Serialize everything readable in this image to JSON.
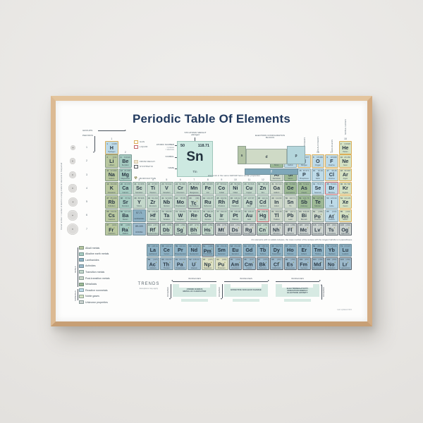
{
  "title": "Periodic Table Of Elements",
  "palette": {
    "wall": "#e7e5e2",
    "frame_wood": "#d9b78f",
    "title_text": "#223a5e"
  },
  "axis_labels": {
    "groups": "GROUPS",
    "periods": "PERIODS"
  },
  "group_numbers": [
    "1",
    "2",
    "3",
    "4",
    "5",
    "6",
    "7",
    "8",
    "9",
    "10",
    "11",
    "12",
    "13",
    "14",
    "15",
    "16",
    "17",
    "18"
  ],
  "period_numbers": [
    "1",
    "2",
    "3",
    "4",
    "5",
    "6",
    "7"
  ],
  "column_headers": [
    {
      "g": 15,
      "label": "PNICTOGENS"
    },
    {
      "g": 16,
      "label": "CHALCOGENS"
    },
    {
      "g": 17,
      "label": "HALOGENS"
    },
    {
      "g": 18,
      "label": "NOBLE GASES"
    }
  ],
  "key": {
    "std_weight_label": "STD ATOMIC WEIGHT",
    "std_weight_sub": "abridged",
    "atomic_number_label": "ATOMIC NUMBER",
    "protons_label": "= protons",
    "electrons_label": "= electrons",
    "symbol_label": "SYMBOL",
    "name_label": "NAME",
    "number": "50",
    "weight": "118.71",
    "symbol": "Sn",
    "name": "Tin"
  },
  "state_legend": [
    {
      "type": "gas",
      "label": "GAS",
      "color": "#dcae58"
    },
    {
      "type": "liquid",
      "label": "LIQUID",
      "color": "#c4646a"
    },
    {
      "type": "decay",
      "label": "FROM DECAY",
      "color": "#efe5cf"
    },
    {
      "type": "synthetic",
      "label": "SYNTHETIC",
      "color": "#55595e"
    },
    {
      "type": "radioactive",
      "label": "RADIOACTIVE",
      "icon": "radioactive-trefoil-icon",
      "color": "#6b6b2a"
    }
  ],
  "econfig": {
    "title": "ELECTRON CONFIGURATION",
    "subtitle": "BLOCKS",
    "blocks": [
      "s",
      "d",
      "p",
      "f"
    ],
    "block_colors": {
      "s": "#b3c4a6",
      "d": "#cfdac6",
      "p": "#b4d6dc",
      "f": "#7fa7b9"
    }
  },
  "notes": {
    "group_note": "Elements in the same GROUP have similar properties",
    "isotope_note": "For elements with no stable isotopes, the mass number of the isotope with the longest half-life is in parentheses.",
    "period_note": "Period number = number of electron energy shells for elements in that period",
    "credit": "Last updated 2021"
  },
  "categories": [
    {
      "id": "ak",
      "label": "Alkali metals",
      "color": "#b8c79f"
    },
    {
      "id": "ae",
      "label": "Alkaline earth metals",
      "color": "#a6cbc1"
    },
    {
      "id": "la",
      "label": "Lanthanides",
      "color": "#8cb0c3"
    },
    {
      "id": "ac",
      "label": "Actinides",
      "color": "#9cb9cb"
    },
    {
      "id": "tm",
      "label": "Transition metals",
      "color": "#c3d7ca"
    },
    {
      "id": "pt",
      "label": "Post-transition metals",
      "color": "#ccd7c9"
    },
    {
      "id": "md",
      "label": "Metalloids",
      "color": "#9db995"
    },
    {
      "id": "nm",
      "label": "Reactive nonmetals",
      "color": "#bddae8"
    },
    {
      "id": "ng",
      "label": "Noble gases",
      "color": "#d5e2c4"
    },
    {
      "id": "uk",
      "label": "Unknown properties",
      "color": "#cbd2cf"
    }
  ],
  "category_groups": {
    "metals": "METALS",
    "nonmetals": "NONMETALS"
  },
  "placeholders": [
    {
      "range": "57-71",
      "label": "Lanthanides",
      "p": 6,
      "g": 3,
      "cat": "la"
    },
    {
      "range": "89-103",
      "label": "Actinides",
      "p": 7,
      "g": 3,
      "cat": "ac"
    }
  ],
  "trends": {
    "title": "TRENDS",
    "subtitle": "Exceptions may apply",
    "increases": "INCREASES",
    "items": [
      {
        "lines": [
          "ATOMIC RADIUS",
          "METALLIC CHARACTER"
        ],
        "top": "left",
        "side": "left-down"
      },
      {
        "lines": [
          "EFFECTIVE NUCLEAR CHARGE"
        ],
        "top": "right",
        "side": "left-down"
      },
      {
        "lines": [
          "ELECTRONEGATIVITY",
          "IONIZATION ENERGY",
          "ELECTRON AFFINITY"
        ],
        "top": "right",
        "side": "right-up"
      }
    ]
  },
  "elements": [
    [
      1,
      "H",
      "Hydrogen",
      "1.008",
      "nm",
      1,
      1,
      "g"
    ],
    [
      2,
      "He",
      "Helium",
      "4.0026",
      "ng",
      1,
      18,
      "g"
    ],
    [
      3,
      "Li",
      "Lithium",
      "6.94",
      "ak",
      2,
      1,
      ""
    ],
    [
      4,
      "Be",
      "Beryllium",
      "9.0122",
      "ae",
      2,
      2,
      ""
    ],
    [
      5,
      "B",
      "Boron",
      "10.81",
      "md",
      2,
      13,
      ""
    ],
    [
      6,
      "C",
      "Carbon",
      "12.011",
      "nm",
      2,
      14,
      ""
    ],
    [
      7,
      "N",
      "Nitrogen",
      "14.007",
      "nm",
      2,
      15,
      "g"
    ],
    [
      8,
      "O",
      "Oxygen",
      "15.999",
      "nm",
      2,
      16,
      "g"
    ],
    [
      9,
      "F",
      "Fluorine",
      "18.998",
      "nm",
      2,
      17,
      "g"
    ],
    [
      10,
      "Ne",
      "Neon",
      "20.180",
      "ng",
      2,
      18,
      "g"
    ],
    [
      11,
      "Na",
      "Sodium",
      "22.990",
      "ak",
      3,
      1,
      ""
    ],
    [
      12,
      "Mg",
      "Magnesium",
      "24.305",
      "ae",
      3,
      2,
      ""
    ],
    [
      13,
      "Al",
      "Aluminium",
      "26.982",
      "pt",
      3,
      13,
      ""
    ],
    [
      14,
      "Si",
      "Silicon",
      "28.085",
      "md",
      3,
      14,
      ""
    ],
    [
      15,
      "P",
      "Phosphorus",
      "30.974",
      "nm",
      3,
      15,
      ""
    ],
    [
      16,
      "S",
      "Sulfur",
      "32.06",
      "nm",
      3,
      16,
      ""
    ],
    [
      17,
      "Cl",
      "Chlorine",
      "35.45",
      "nm",
      3,
      17,
      "g"
    ],
    [
      18,
      "Ar",
      "Argon",
      "39.948",
      "ng",
      3,
      18,
      "g"
    ],
    [
      19,
      "K",
      "Potassium",
      "39.098",
      "ak",
      4,
      1,
      ""
    ],
    [
      20,
      "Ca",
      "Calcium",
      "40.078",
      "ae",
      4,
      2,
      ""
    ],
    [
      21,
      "Sc",
      "Scandium",
      "44.956",
      "tm",
      4,
      3,
      ""
    ],
    [
      22,
      "Ti",
      "Titanium",
      "47.867",
      "tm",
      4,
      4,
      ""
    ],
    [
      23,
      "V",
      "Vanadium",
      "50.942",
      "tm",
      4,
      5,
      ""
    ],
    [
      24,
      "Cr",
      "Chromium",
      "51.996",
      "tm",
      4,
      6,
      ""
    ],
    [
      25,
      "Mn",
      "Manganese",
      "54.938",
      "tm",
      4,
      7,
      ""
    ],
    [
      26,
      "Fe",
      "Iron",
      "55.845",
      "tm",
      4,
      8,
      ""
    ],
    [
      27,
      "Co",
      "Cobalt",
      "58.933",
      "tm",
      4,
      9,
      ""
    ],
    [
      28,
      "Ni",
      "Nickel",
      "58.693",
      "tm",
      4,
      10,
      ""
    ],
    [
      29,
      "Cu",
      "Copper",
      "63.546",
      "tm",
      4,
      11,
      ""
    ],
    [
      30,
      "Zn",
      "Zinc",
      "65.38",
      "tm",
      4,
      12,
      ""
    ],
    [
      31,
      "Ga",
      "Gallium",
      "69.723",
      "pt",
      4,
      13,
      ""
    ],
    [
      32,
      "Ge",
      "Germanium",
      "72.630",
      "md",
      4,
      14,
      ""
    ],
    [
      33,
      "As",
      "Arsenic",
      "74.922",
      "md",
      4,
      15,
      ""
    ],
    [
      34,
      "Se",
      "Selenium",
      "78.971",
      "nm",
      4,
      16,
      ""
    ],
    [
      35,
      "Br",
      "Bromine",
      "79.904",
      "nm",
      4,
      17,
      "l"
    ],
    [
      36,
      "Kr",
      "Krypton",
      "83.798",
      "ng",
      4,
      18,
      "g"
    ],
    [
      37,
      "Rb",
      "Rubidium",
      "85.468",
      "ak",
      5,
      1,
      ""
    ],
    [
      38,
      "Sr",
      "Strontium",
      "87.62",
      "ae",
      5,
      2,
      ""
    ],
    [
      39,
      "Y",
      "Yttrium",
      "88.906",
      "tm",
      5,
      3,
      ""
    ],
    [
      40,
      "Zr",
      "Zirconium",
      "91.224",
      "tm",
      5,
      4,
      ""
    ],
    [
      41,
      "Nb",
      "Niobium",
      "92.906",
      "tm",
      5,
      5,
      ""
    ],
    [
      42,
      "Mo",
      "Molybdenum",
      "95.95",
      "tm",
      5,
      6,
      ""
    ],
    [
      43,
      "Tc",
      "Technetium",
      "(98)",
      "tm",
      5,
      7,
      "rs"
    ],
    [
      44,
      "Ru",
      "Ruthenium",
      "101.07",
      "tm",
      5,
      8,
      ""
    ],
    [
      45,
      "Rh",
      "Rhodium",
      "102.91",
      "tm",
      5,
      9,
      ""
    ],
    [
      46,
      "Pd",
      "Palladium",
      "106.42",
      "tm",
      5,
      10,
      ""
    ],
    [
      47,
      "Ag",
      "Silver",
      "107.87",
      "tm",
      5,
      11,
      ""
    ],
    [
      48,
      "Cd",
      "Cadmium",
      "112.41",
      "tm",
      5,
      12,
      ""
    ],
    [
      49,
      "In",
      "Indium",
      "114.82",
      "pt",
      5,
      13,
      ""
    ],
    [
      50,
      "Sn",
      "Tin",
      "118.71",
      "pt",
      5,
      14,
      ""
    ],
    [
      51,
      "Sb",
      "Antimony",
      "121.76",
      "md",
      5,
      15,
      ""
    ],
    [
      52,
      "Te",
      "Tellurium",
      "127.60",
      "md",
      5,
      16,
      ""
    ],
    [
      53,
      "I",
      "Iodine",
      "126.90",
      "nm",
      5,
      17,
      ""
    ],
    [
      54,
      "Xe",
      "Xenon",
      "131.29",
      "ng",
      5,
      18,
      "g"
    ],
    [
      55,
      "Cs",
      "Caesium",
      "132.91",
      "ak",
      6,
      1,
      ""
    ],
    [
      56,
      "Ba",
      "Barium",
      "137.33",
      "ae",
      6,
      2,
      ""
    ],
    [
      72,
      "Hf",
      "Hafnium",
      "178.49",
      "tm",
      6,
      4,
      ""
    ],
    [
      73,
      "Ta",
      "Tantalum",
      "180.95",
      "tm",
      6,
      5,
      ""
    ],
    [
      74,
      "W",
      "Tungsten",
      "183.84",
      "tm",
      6,
      6,
      ""
    ],
    [
      75,
      "Re",
      "Rhenium",
      "186.21",
      "tm",
      6,
      7,
      ""
    ],
    [
      76,
      "Os",
      "Osmium",
      "190.23",
      "tm",
      6,
      8,
      ""
    ],
    [
      77,
      "Ir",
      "Iridium",
      "192.22",
      "tm",
      6,
      9,
      ""
    ],
    [
      78,
      "Pt",
      "Platinum",
      "195.08",
      "tm",
      6,
      10,
      ""
    ],
    [
      79,
      "Au",
      "Gold",
      "196.97",
      "tm",
      6,
      11,
      ""
    ],
    [
      80,
      "Hg",
      "Mercury",
      "200.59",
      "tm",
      6,
      12,
      "l"
    ],
    [
      81,
      "Tl",
      "Thallium",
      "204.38",
      "pt",
      6,
      13,
      ""
    ],
    [
      82,
      "Pb",
      "Lead",
      "207.2",
      "pt",
      6,
      14,
      ""
    ],
    [
      83,
      "Bi",
      "Bismuth",
      "208.98",
      "pt",
      6,
      15,
      ""
    ],
    [
      84,
      "Po",
      "Polonium",
      "(209)",
      "pt",
      6,
      16,
      "r"
    ],
    [
      85,
      "At",
      "Astatine",
      "(210)",
      "nm",
      6,
      17,
      "r"
    ],
    [
      86,
      "Rn",
      "Radon",
      "(222)",
      "ng",
      6,
      18,
      "rg"
    ],
    [
      87,
      "Fr",
      "Francium",
      "(223)",
      "ak",
      7,
      1,
      "r"
    ],
    [
      88,
      "Ra",
      "Radium",
      "(226)",
      "ae",
      7,
      2,
      "r"
    ],
    [
      104,
      "Rf",
      "Rutherfordium",
      "(267)",
      "tm",
      7,
      4,
      "rs"
    ],
    [
      105,
      "Db",
      "Dubnium",
      "(268)",
      "tm",
      7,
      5,
      "rs"
    ],
    [
      106,
      "Sg",
      "Seaborgium",
      "(269)",
      "tm",
      7,
      6,
      "rs"
    ],
    [
      107,
      "Bh",
      "Bohrium",
      "(270)",
      "tm",
      7,
      7,
      "rs"
    ],
    [
      108,
      "Hs",
      "Hassium",
      "(269)",
      "tm",
      7,
      8,
      "rs"
    ],
    [
      109,
      "Mt",
      "Meitnerium",
      "(278)",
      "uk",
      7,
      9,
      "rs"
    ],
    [
      110,
      "Ds",
      "Darmstadtium",
      "(281)",
      "uk",
      7,
      10,
      "rs"
    ],
    [
      111,
      "Rg",
      "Roentgenium",
      "(282)",
      "uk",
      7,
      11,
      "rs"
    ],
    [
      112,
      "Cn",
      "Copernicium",
      "(285)",
      "tm",
      7,
      12,
      "rs"
    ],
    [
      113,
      "Nh",
      "Nihonium",
      "(286)",
      "uk",
      7,
      13,
      "rs"
    ],
    [
      114,
      "Fl",
      "Flerovium",
      "(289)",
      "uk",
      7,
      14,
      "rs"
    ],
    [
      115,
      "Mc",
      "Moscovium",
      "(290)",
      "uk",
      7,
      15,
      "rs"
    ],
    [
      116,
      "Lv",
      "Livermorium",
      "(293)",
      "uk",
      7,
      16,
      "rs"
    ],
    [
      117,
      "Ts",
      "Tennessine",
      "(294)",
      "uk",
      7,
      17,
      "rs"
    ],
    [
      118,
      "Og",
      "Oganesson",
      "(294)",
      "uk",
      7,
      18,
      "rs"
    ],
    [
      57,
      "La",
      "Lanthanum",
      "138.91",
      "la",
      8,
      4,
      ""
    ],
    [
      58,
      "Ce",
      "Cerium",
      "140.12",
      "la",
      8,
      5,
      ""
    ],
    [
      59,
      "Pr",
      "Praseodymium",
      "140.91",
      "la",
      8,
      6,
      ""
    ],
    [
      60,
      "Nd",
      "Neodymium",
      "144.24",
      "la",
      8,
      7,
      ""
    ],
    [
      61,
      "Pm",
      "Promethium",
      "(145)",
      "la",
      8,
      8,
      "rs"
    ],
    [
      62,
      "Sm",
      "Samarium",
      "150.36",
      "la",
      8,
      9,
      ""
    ],
    [
      63,
      "Eu",
      "Europium",
      "151.96",
      "la",
      8,
      10,
      ""
    ],
    [
      64,
      "Gd",
      "Gadolinium",
      "157.25",
      "la",
      8,
      11,
      ""
    ],
    [
      65,
      "Tb",
      "Terbium",
      "158.93",
      "la",
      8,
      12,
      ""
    ],
    [
      66,
      "Dy",
      "Dysprosium",
      "162.50",
      "la",
      8,
      13,
      ""
    ],
    [
      67,
      "Ho",
      "Holmium",
      "164.93",
      "la",
      8,
      14,
      ""
    ],
    [
      68,
      "Er",
      "Erbium",
      "167.26",
      "la",
      8,
      15,
      ""
    ],
    [
      69,
      "Tm",
      "Thulium",
      "168.93",
      "la",
      8,
      16,
      ""
    ],
    [
      70,
      "Yb",
      "Ytterbium",
      "173.05",
      "la",
      8,
      17,
      ""
    ],
    [
      71,
      "Lu",
      "Lutetium",
      "174.97",
      "la",
      8,
      18,
      ""
    ],
    [
      89,
      "Ac",
      "Actinium",
      "(227)",
      "ac",
      9,
      4,
      "r"
    ],
    [
      90,
      "Th",
      "Thorium",
      "232.04",
      "ac",
      9,
      5,
      "r"
    ],
    [
      91,
      "Pa",
      "Protactinium",
      "231.04",
      "ac",
      9,
      6,
      "r"
    ],
    [
      92,
      "U",
      "Uranium",
      "238.03",
      "ac",
      9,
      7,
      "r"
    ],
    [
      93,
      "Np",
      "Neptunium",
      "(237)",
      "ac",
      9,
      8,
      "rd"
    ],
    [
      94,
      "Pu",
      "Plutonium",
      "(244)",
      "ac",
      9,
      9,
      "rd"
    ],
    [
      95,
      "Am",
      "Americium",
      "(243)",
      "ac",
      9,
      10,
      "rs"
    ],
    [
      96,
      "Cm",
      "Curium",
      "(247)",
      "ac",
      9,
      11,
      "rs"
    ],
    [
      97,
      "Bk",
      "Berkelium",
      "(247)",
      "ac",
      9,
      12,
      "rs"
    ],
    [
      98,
      "Cf",
      "Californium",
      "(251)",
      "ac",
      9,
      13,
      "rs"
    ],
    [
      99,
      "Es",
      "Einsteinium",
      "(252)",
      "ac",
      9,
      14,
      "rs"
    ],
    [
      100,
      "Fm",
      "Fermium",
      "(257)",
      "ac",
      9,
      15,
      "rs"
    ],
    [
      101,
      "Md",
      "Mendelevium",
      "(258)",
      "ac",
      9,
      16,
      "rs"
    ],
    [
      102,
      "No",
      "Nobelium",
      "(259)",
      "ac",
      9,
      17,
      "rs"
    ],
    [
      103,
      "Lr",
      "Lawrencium",
      "(266)",
      "ac",
      9,
      18,
      "rs"
    ]
  ]
}
